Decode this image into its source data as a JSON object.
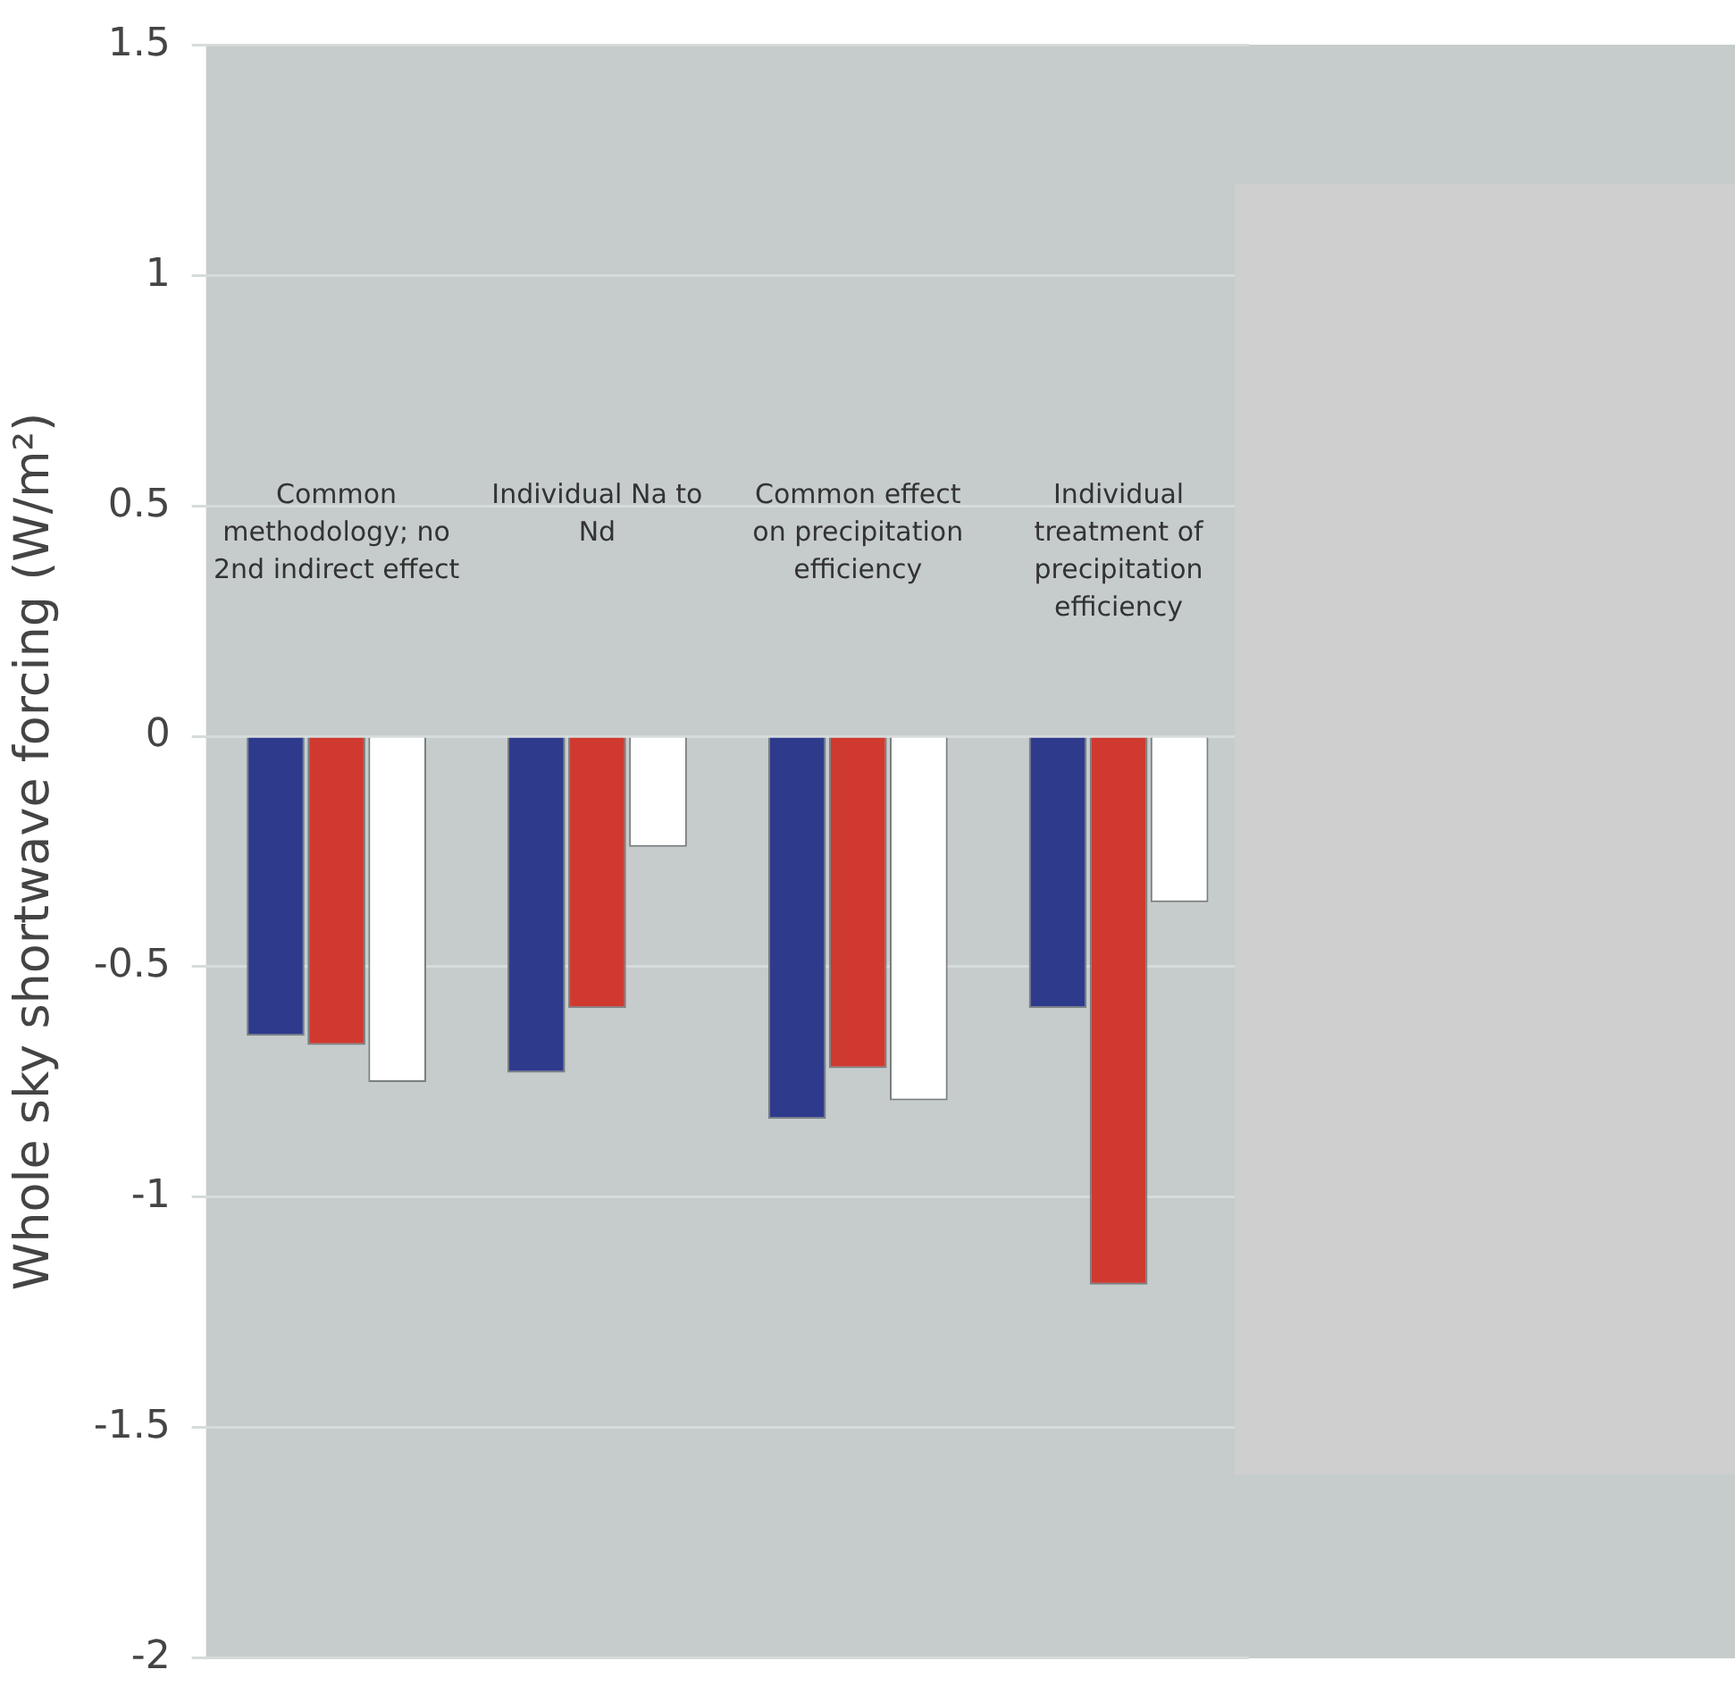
{
  "chart_data": {
    "type": "bar",
    "ylabel": "Whole sky shortwave forcing (W/m²)",
    "categories": [
      "Common methodology; no 2nd indirect effect",
      "Individual Na to Nd",
      "Common effect on precipitation efficiency",
      "Individual treatment of precipitation efficiency"
    ],
    "series": [
      {
        "color": "#2e3a8c",
        "values": [
          -0.65,
          -0.73,
          -0.83,
          -0.59
        ]
      },
      {
        "color": "#d0392f",
        "values": [
          -0.67,
          -0.59,
          -0.72,
          -1.19
        ]
      },
      {
        "color": "#ffffff",
        "values": [
          -0.75,
          -0.24,
          -0.79,
          -0.36
        ]
      }
    ],
    "ylim": [
      -2,
      1.5
    ],
    "yticks": [
      -2,
      -1.5,
      -1,
      -0.5,
      0,
      0.5,
      1,
      1.5
    ],
    "grid": "y",
    "legend": false
  }
}
